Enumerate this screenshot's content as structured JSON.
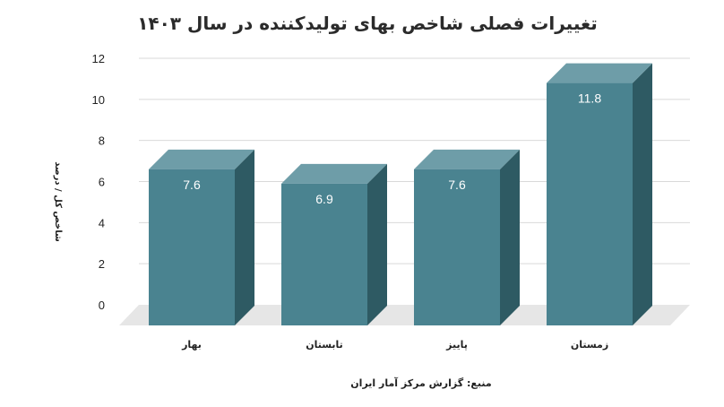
{
  "chart_data": {
    "type": "bar",
    "title": "تغییرات فصلی شاخص بهای تولیدکننده در سال ۱۴۰۳",
    "ylabel": "شاخص کل / درصد",
    "xlabel": "",
    "source": "منبع: گزارش مرکز آمار ایران",
    "categories": [
      "بهار",
      "تابستان",
      "پاییز",
      "زمستان"
    ],
    "values": [
      7.6,
      6.9,
      7.6,
      11.8
    ],
    "data_labels": [
      "7.6",
      "6.9",
      "7.6",
      "11.8"
    ],
    "yticks": [
      "0",
      "2",
      "4",
      "6",
      "8",
      "10",
      "12"
    ],
    "ylim": [
      0,
      12
    ],
    "grid": true,
    "legend": "none",
    "style": "3d-bar",
    "colors": {
      "bar_front": "#4a8390",
      "bar_side": "#2e5a63",
      "bar_top": "#6e9da8",
      "floor": "#e6e6e6",
      "grid": "#d9d9d9"
    }
  }
}
